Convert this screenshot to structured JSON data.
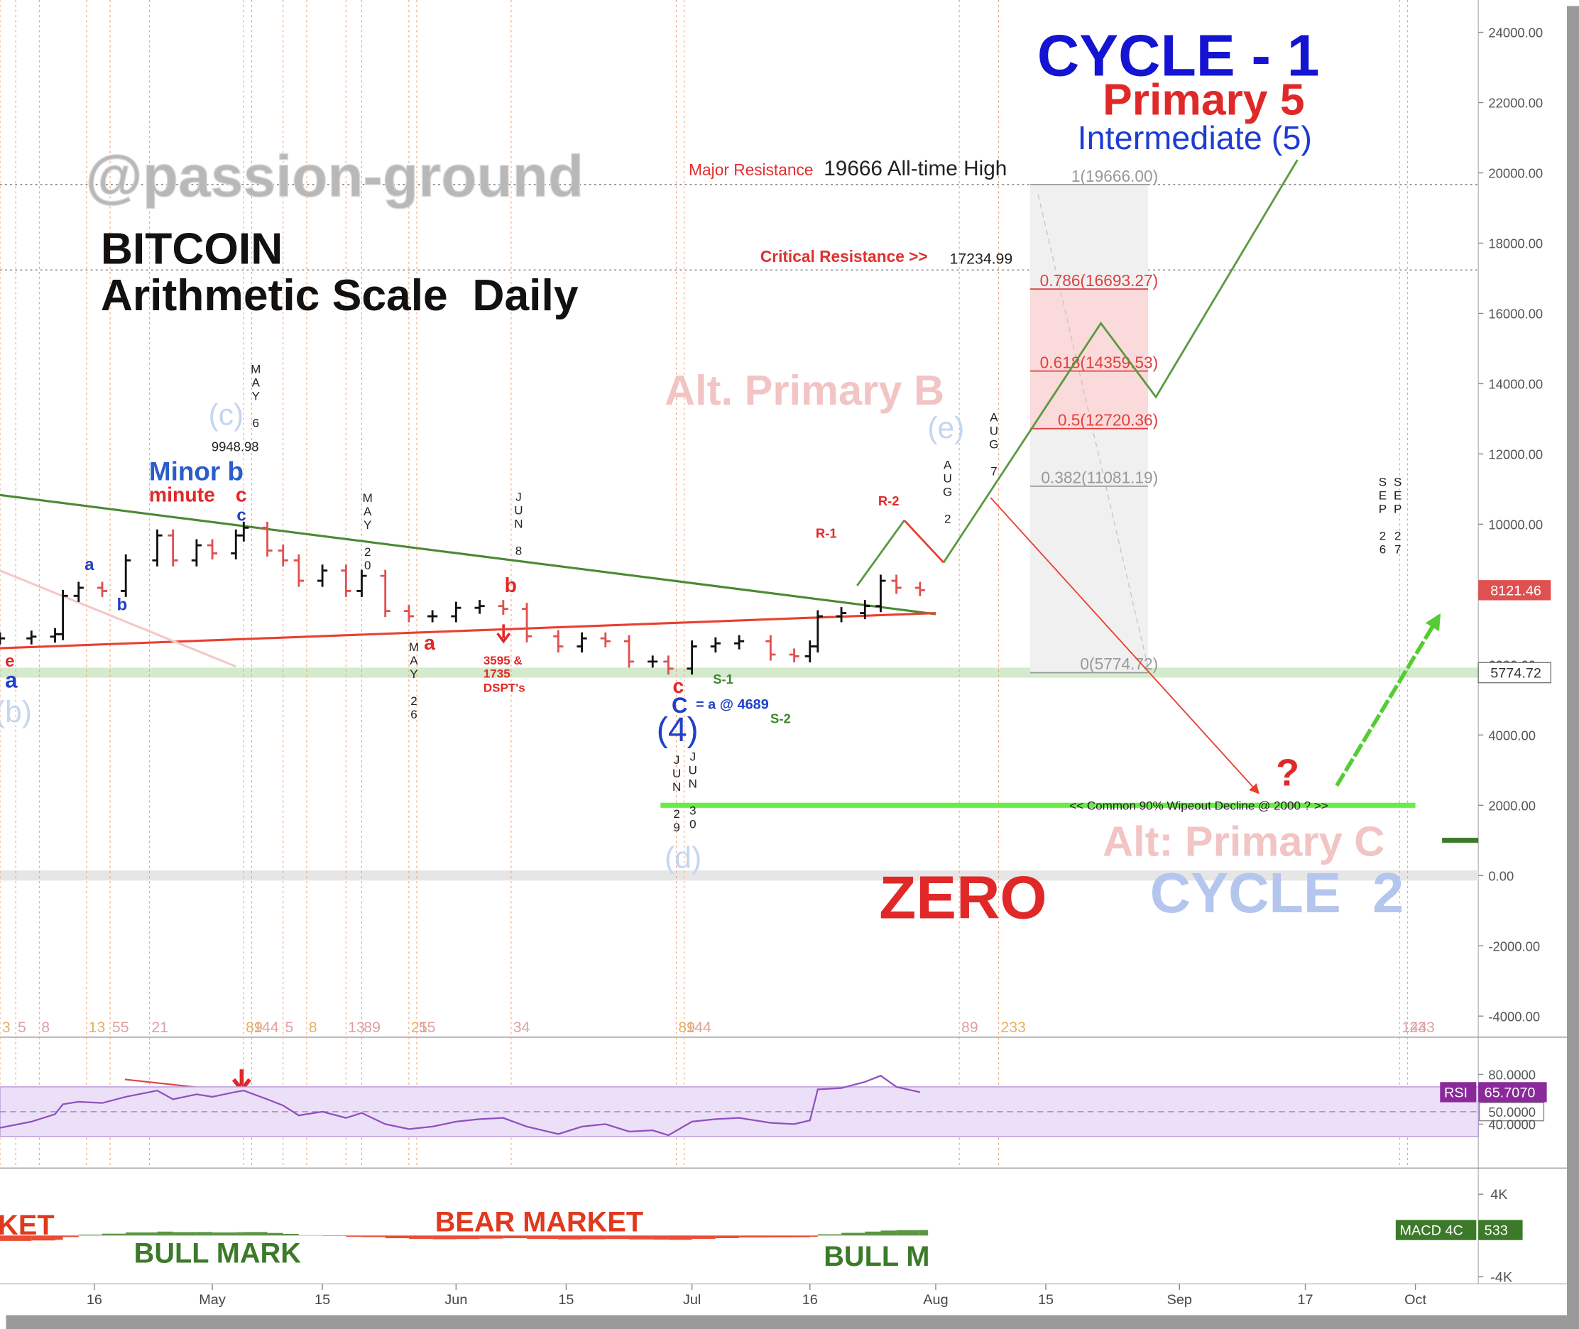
{
  "chart_data": [
    {
      "type": "ohlc",
      "x": [
        "04-04",
        "04-08",
        "04-11",
        "04-12",
        "04-14",
        "04-17",
        "04-20",
        "04-24",
        "04-26",
        "04-29",
        "05-01",
        "05-04",
        "05-05",
        "05-08",
        "05-10",
        "05-12",
        "05-15",
        "05-18",
        "05-20",
        "05-23",
        "05-26",
        "05-29",
        "06-01",
        "06-04",
        "06-07",
        "06-10",
        "06-14",
        "06-17",
        "06-20",
        "06-23",
        "06-26",
        "06-28",
        "07-01",
        "07-04",
        "07-07",
        "07-11",
        "07-14",
        "07-16",
        "07-17",
        "07-20",
        "07-23",
        "07-25",
        "07-27",
        "07-30"
      ],
      "values": [
        6750,
        6800,
        6870,
        7960,
        8190,
        8100,
        8970,
        9680,
        8970,
        9400,
        9170,
        9680,
        9900,
        9250,
        8970,
        8390,
        8680,
        8100,
        8530,
        7530,
        7380,
        7380,
        7620,
        7670,
        7590,
        6810,
        6520,
        6750,
        6670,
        6090,
        6090,
        5890,
        6520,
        6610,
        6670,
        6290,
        6240,
        6520,
        7380,
        7470,
        7670,
        8390,
        8190,
        8121.46
      ],
      "colors": {
        "up": "#111111",
        "down": "#e05050"
      },
      "xlim": [
        "04-04",
        "10-09"
      ],
      "ylim": [
        -4600,
        24920
      ],
      "yticks": [
        {
          "value": 24000,
          "label": "24000.00"
        },
        {
          "value": 22000,
          "label": "22000.00"
        },
        {
          "value": 20000,
          "label": "20000.00"
        },
        {
          "value": 18000,
          "label": "18000.00"
        },
        {
          "value": 16000,
          "label": "16000.00"
        },
        {
          "value": 14000,
          "label": "14000.00"
        },
        {
          "value": 12000,
          "label": "12000.00"
        },
        {
          "value": 10000,
          "label": "10000.00"
        },
        {
          "value": 8000,
          "label": "8000.00"
        },
        {
          "value": 6000,
          "label": "6000.00"
        },
        {
          "value": 4000,
          "label": "4000.00"
        },
        {
          "value": 2000,
          "label": "2000.00"
        },
        {
          "value": 0,
          "label": "0.00"
        },
        {
          "value": -2000,
          "label": "-2000.00"
        },
        {
          "value": -4000,
          "label": "-4000.00"
        }
      ],
      "xticks": [
        {
          "value": "04-16",
          "label": "16"
        },
        {
          "value": "05-01",
          "label": "May"
        },
        {
          "value": "05-15",
          "label": "15"
        },
        {
          "value": "06-01",
          "label": "Jun"
        },
        {
          "value": "06-15",
          "label": "15"
        },
        {
          "value": "07-01",
          "label": "Jul"
        },
        {
          "value": "07-16",
          "label": "16"
        },
        {
          "value": "08-01",
          "label": "Aug"
        },
        {
          "value": "08-15",
          "label": "15"
        },
        {
          "value": "09-01",
          "label": "Sep"
        },
        {
          "value": "09-17",
          "label": "17"
        },
        {
          "value": "10-01",
          "label": "Oct"
        }
      ],
      "annotations": [
        "@passion-ground",
        "BITCOIN",
        "Arithmetic Scale  Daily",
        "CYCLE - 1",
        "Primary 5",
        "Intermediate (5)",
        "Major Resistance",
        "19666 All-time High",
        "Critical Resistance >>",
        "17234.99",
        "Alt. Primary B",
        "(c)",
        "9948.98",
        "Minor b",
        "minute",
        "c",
        "c",
        "a",
        "b",
        "e",
        "a",
        "(b)",
        "a",
        "b",
        "3595 &",
        "1735",
        "DSPT's",
        "c",
        "C",
        "= a @ 4689",
        "(4)",
        "(d)",
        "S-1",
        "S-2",
        "R-1",
        "R-2",
        "(e)",
        "<< Common 90% Wipeout Decline @ 2000 ? >>",
        "?",
        "Alt: Primary C",
        "ZERO",
        "CYCLE  2",
        "KET",
        "BEAR MARKET",
        "BULL MARK",
        "BULL M"
      ],
      "date_marks": [
        "MAY 6",
        "MAY 20",
        "MAY 26",
        "JUN 8",
        "JUN 29",
        "JUN 30",
        "AUG 2",
        "AUG 7",
        "SEP 26",
        "SEP 27"
      ],
      "cycle_lines": [
        {
          "x": "04-04",
          "label": "3"
        },
        {
          "x": "04-06",
          "label": "5"
        },
        {
          "x": "04-09",
          "label": "8"
        },
        {
          "x": "04-15",
          "label": "13"
        },
        {
          "x": "04-18",
          "label": "55"
        },
        {
          "x": "04-23",
          "label": "21"
        },
        {
          "x": "05-05",
          "label": "89"
        },
        {
          "x": "05-06",
          "label": "144"
        },
        {
          "x": "05-10",
          "label": "5"
        },
        {
          "x": "05-13",
          "label": "8"
        },
        {
          "x": "05-18",
          "label": "13"
        },
        {
          "x": "05-20",
          "label": "89"
        },
        {
          "x": "05-26",
          "label": "21"
        },
        {
          "x": "05-27",
          "label": "55"
        },
        {
          "x": "06-08",
          "label": "34"
        },
        {
          "x": "06-29",
          "label": "89"
        },
        {
          "x": "06-30",
          "label": "144"
        },
        {
          "x": "08-04",
          "label": "89"
        },
        {
          "x": "08-09",
          "label": "233"
        },
        {
          "x": "09-29",
          "label": "144"
        },
        {
          "x": "09-30",
          "label": "233"
        }
      ],
      "fib": {
        "range": [
          "08-13",
          "08-28"
        ],
        "levels": [
          {
            "value": 19666,
            "label": "1(19666.00)",
            "color": "#999999"
          },
          {
            "value": 16693.27,
            "label": "0.786(16693.27)",
            "color": "#e04040"
          },
          {
            "value": 14359.53,
            "label": "0.618(14359.53)",
            "color": "#e04040"
          },
          {
            "value": 12720.36,
            "label": "0.5(12720.36)",
            "color": "#e04040"
          },
          {
            "value": 11081.19,
            "label": "0.382(11081.19)",
            "color": "#999999"
          },
          {
            "value": 5774.72,
            "label": "0(5774.72)",
            "color": "#999999"
          }
        ]
      },
      "resistance_levels": [
        19666,
        17234.99
      ],
      "bands": [
        {
          "value": 5774.72,
          "color": "#d4eacc"
        },
        {
          "value": 0,
          "color": "#e6e6e6"
        }
      ],
      "wipeout_line": {
        "value": 2000,
        "x": [
          "06-27",
          "10-01"
        ],
        "color": "#66ee44"
      },
      "trendlines": [
        {
          "color": "#4a8a34",
          "points": [
            [
              "04-04",
              10830
            ],
            [
              "08-01",
              7440
            ]
          ]
        },
        {
          "color": "#e84030",
          "points": [
            [
              "04-04",
              6470
            ],
            [
              "08-01",
              7470
            ]
          ]
        },
        {
          "color": "#f4c8c8",
          "points": [
            [
              "04-04",
              8680
            ],
            [
              "05-04",
              5950
            ]
          ]
        }
      ],
      "projections": [
        {
          "color": "#5a9a40",
          "arrow": false,
          "points": [
            [
              "07-22",
              8250
            ],
            [
              "07-28",
              10110
            ]
          ]
        },
        {
          "color": "#e84030",
          "arrow": false,
          "points": [
            [
              "07-28",
              10110
            ],
            [
              "08-02",
              8910
            ]
          ]
        },
        {
          "color": "#5a9a40",
          "arrow": false,
          "points": [
            [
              "08-02",
              8910
            ],
            [
              "08-22",
              15720
            ],
            [
              "08-29",
              13620
            ],
            [
              "09-16",
              20370
            ]
          ]
        },
        {
          "color": "#e84030",
          "arrow": true,
          "points": [
            [
              "08-08",
              10750
            ],
            [
              "09-11",
              2360
            ]
          ]
        },
        {
          "color": "#55cc33",
          "arrow": true,
          "points": [
            [
              "09-21",
              2560
            ],
            [
              "10-04",
              7390
            ]
          ]
        }
      ]
    },
    {
      "type": "rsi",
      "name": "RSI",
      "x": [
        "04-04",
        "04-08",
        "04-11",
        "04-12",
        "04-14",
        "04-17",
        "04-20",
        "04-24",
        "04-26",
        "04-29",
        "05-01",
        "05-04",
        "05-05",
        "05-08",
        "05-10",
        "05-12",
        "05-15",
        "05-18",
        "05-20",
        "05-23",
        "05-26",
        "05-29",
        "06-01",
        "06-04",
        "06-07",
        "06-10",
        "06-14",
        "06-17",
        "06-20",
        "06-23",
        "06-26",
        "06-28",
        "07-01",
        "07-04",
        "07-07",
        "07-11",
        "07-14",
        "07-16",
        "07-17",
        "07-20",
        "07-23",
        "07-25",
        "07-27",
        "07-30"
      ],
      "values": [
        37,
        42,
        48,
        56,
        58,
        57,
        62,
        67,
        60,
        64,
        62,
        66,
        67,
        60,
        55,
        47,
        50,
        45,
        49,
        40,
        36,
        38,
        42,
        44,
        45,
        38,
        32,
        38,
        40,
        34,
        35,
        31,
        42,
        44,
        45,
        41,
        40,
        43,
        68,
        69,
        74,
        79,
        70,
        65.707
      ],
      "value_labels": [
        null,
        null,
        null,
        null,
        null,
        null,
        null,
        null,
        null,
        null,
        null,
        null,
        null,
        null,
        null,
        null,
        null,
        null,
        null,
        null,
        null,
        null,
        null,
        null,
        null,
        null,
        null,
        null,
        null,
        null,
        null,
        null,
        null,
        null,
        null,
        null,
        null,
        null,
        null,
        null,
        null,
        null,
        null,
        "65.7070"
      ],
      "color": "#9050c0",
      "band": [
        30,
        70
      ],
      "midline": 50,
      "ylim": [
        4.6,
        107.6
      ],
      "yticks": [
        {
          "value": 80,
          "label": "80.0000"
        },
        {
          "value": 50,
          "label": "50.0000"
        },
        {
          "value": 40,
          "label": "40.0000"
        }
      ]
    },
    {
      "type": "histogram",
      "name": "MACD 4C",
      "x": [
        "04-04",
        "04-08",
        "04-11",
        "04-12",
        "04-14",
        "04-17",
        "04-20",
        "04-24",
        "04-26",
        "04-29",
        "05-01",
        "05-04",
        "05-05",
        "05-08",
        "05-10",
        "05-12",
        "05-15",
        "05-18",
        "05-20",
        "05-23",
        "05-26",
        "05-29",
        "06-01",
        "06-04",
        "06-07",
        "06-10",
        "06-14",
        "06-17",
        "06-20",
        "06-23",
        "06-26",
        "06-28",
        "07-01",
        "07-04",
        "07-07",
        "07-11",
        "07-14",
        "07-16",
        "07-17",
        "07-20",
        "07-23",
        "07-25",
        "07-27",
        "07-30"
      ],
      "values": [
        -520,
        -480,
        -420,
        -150,
        80,
        180,
        300,
        380,
        330,
        340,
        300,
        320,
        340,
        250,
        160,
        30,
        -40,
        -120,
        -150,
        -260,
        -330,
        -360,
        -340,
        -300,
        -260,
        -330,
        -380,
        -360,
        -340,
        -380,
        -400,
        -420,
        -330,
        -250,
        -190,
        -180,
        -170,
        -120,
        120,
        260,
        380,
        480,
        520,
        533
      ],
      "colors": {
        "up": "#4a8a30",
        "down": "#e83a20"
      },
      "ylim": [
        -4390,
        6240
      ],
      "yticks": [
        {
          "value": 4000,
          "label": "4K"
        },
        {
          "value": -4000,
          "label": "-4K"
        }
      ]
    }
  ]
}
